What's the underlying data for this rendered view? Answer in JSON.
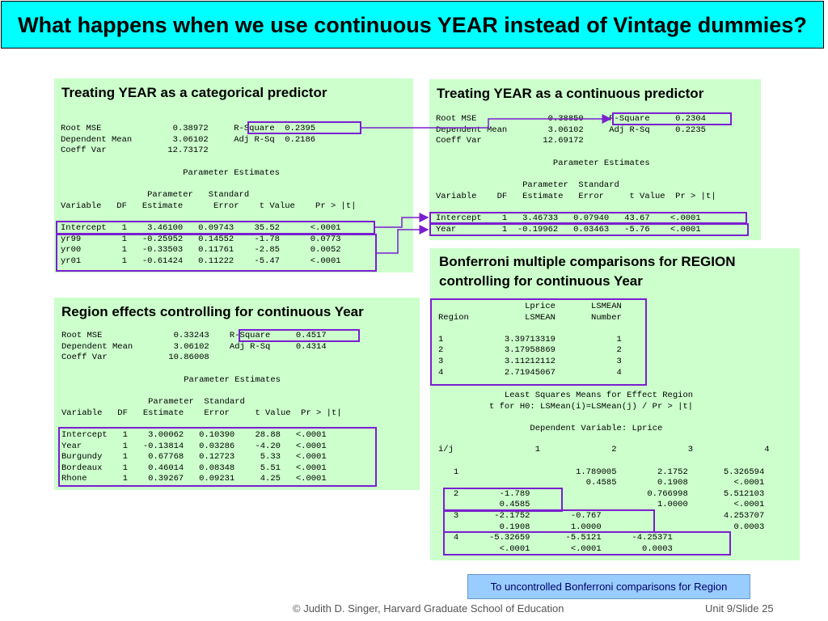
{
  "slide": {
    "title": "What happens when we use continuous YEAR instead of Vintage dummies?",
    "footer_left": "© Judith D. Singer, Harvard Graduate School of Education",
    "footer_right": "Unit 9/Slide 25",
    "link_button": "To uncontrolled Bonferroni comparisons for Region",
    "colors": {
      "title_bg": "#00ffff",
      "panel_bg": "#ccffcc",
      "highlight": "#7a1fd0",
      "button_bg": "#99ccff"
    }
  },
  "panel_categorical": {
    "title": "Treating YEAR as a categorical predictor",
    "fit": "Root MSE              0.38972     R-Square  0.2395\nDependent Mean        3.06102     Adj R-Sq  0.2186\nCoeff Var            12.73172",
    "params_header": "                        Parameter Estimates\n\n                 Parameter   Standard\nVariable   DF   Estimate      Error    t Value    Pr > |t|",
    "params_rows": "Intercept   1    3.46100   0.09743    35.52      <.0001\nyr99        1   -0.25952   0.14552    -1.78      0.0773\nyr00        1   -0.33503   0.11761    -2.85      0.0052\nyr01        1   -0.61424   0.11222    -5.47      <.0001"
  },
  "panel_continuous": {
    "title": "Treating YEAR as a continuous predictor",
    "fit": "Root MSE              0.38850     R-Square     0.2304\nDependent Mean        3.06102     Adj R-Sq     0.2235\nCoeff Var            12.69172",
    "params_header": "                       Parameter Estimates\n\n                 Parameter  Standard\nVariable    DF   Estimate   Error     t Value  Pr > |t|",
    "params_rows": "Intercept    1   3.46733   0.07940   43.67    <.0001\nYear         1  -0.19962   0.03463   -5.76    <.0001"
  },
  "panel_region": {
    "title": "Region effects controlling for continuous Year",
    "fit": "Root MSE              0.33243    R-Square     0.4517\nDependent Mean        3.06102    Adj R-Sq     0.4314\nCoeff Var            10.86008",
    "params_header": "                        Parameter Estimates\n\n                 Parameter  Standard\nVariable   DF   Estimate    Error     t Value  Pr > |t|",
    "params_rows": "Intercept   1    3.00062   0.10390    28.88   <.0001\nYear        1   -0.13814   0.03286    -4.20   <.0001\nBurgundy    1    0.67768   0.12723     5.33   <.0001\nBordeaux    1    0.46014   0.08348     5.51   <.0001\nRhone       1    0.39267   0.09231     4.25   <.0001"
  },
  "panel_bonferroni": {
    "title_line1": "Bonferroni multiple comparisons for REGION",
    "title_line2": "controlling for continuous Year",
    "lsmeans": "                 Lprice       LSMEAN\nRegion           LSMEAN       Number\n\n1            3.39713319            1\n2            3.17958869            2\n3            3.11212112            3\n4            2.71945067            4",
    "lsm_caption": "             Least Squares Means for Effect Region\n          t for H0: LSMean(i)=LSMean(j) / Pr > |t|\n\n                  Dependent Variable: Lprice",
    "matrix_header": "i/j                1              2              3              4",
    "matrix_rows": "\n   1                       1.789005        2.1752       5.326594\n                             0.4585        0.1908         <.0001\n   2        -1.789                       0.766998       5.512103\n            0.4585                         1.0000         <.0001\n   3       -2.1752        -0.767                        4.253707\n            0.1908        1.0000                          0.0003\n   4      -5.32659       -5.5121      -4.25371\n            <.0001        <.0001        0.0003"
  }
}
